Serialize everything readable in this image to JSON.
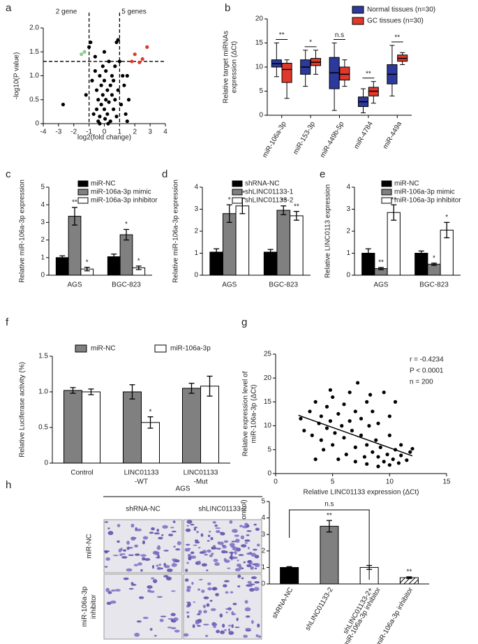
{
  "chart_data": [
    {
      "panel": "a",
      "type": "scatter",
      "annotations": [
        "2 gene",
        "5 genes"
      ],
      "xlabel": "log2(fold change)",
      "ylabel": [
        "-log10(P value)"
      ],
      "xlim": [
        -4,
        4
      ],
      "xticks": [
        -4,
        -3,
        -2,
        -1,
        0,
        1,
        2,
        3,
        4
      ],
      "ylim": [
        0,
        2
      ],
      "yticks": [
        0,
        0.5,
        {
          "value": 1,
          "label": "1.0"
        },
        1.5,
        {
          "value": 2,
          "label": "2.0"
        }
      ],
      "xthresholds": [
        -1,
        1
      ],
      "ythreshold": 1.3,
      "series": [
        {
          "color": "#000000",
          "x": [
            -2.7,
            -1.2,
            -1.0,
            -0.9,
            -0.8,
            -0.7,
            -0.6,
            -0.5,
            -0.5,
            -0.4,
            -0.4,
            -0.3,
            -0.3,
            -0.2,
            -0.2,
            -0.1,
            -0.1,
            0.0,
            0.0,
            0.05,
            0.1,
            0.1,
            0.2,
            0.2,
            0.3,
            0.3,
            0.4,
            0.4,
            0.5,
            0.5,
            0.6,
            0.6,
            0.7,
            0.7,
            0.8,
            0.8,
            0.9,
            0.9,
            1.0,
            1.1,
            1.2,
            1.3,
            1.4,
            1.5,
            1.6,
            1.5,
            -0.6,
            0.0,
            -0.3,
            0.25
          ],
          "values": [
            0.4,
            0.6,
            1.6,
            1.7,
            0.9,
            0.2,
            1.1,
            0.3,
            0.7,
            0.05,
            0.5,
            1.0,
            0.15,
            0.8,
            0.4,
            1.2,
            0.6,
            0.3,
            0.9,
            0.1,
            0.5,
            1.1,
            0.7,
            0.2,
            1.3,
            0.45,
            0.8,
            0.05,
            0.6,
            1.0,
            0.3,
            0.9,
            1.2,
            0.5,
            0.15,
            1.7,
            1.75,
            0.7,
            1.3,
            0.4,
            1.0,
            0.8,
            0.2,
            0.05,
            0.5,
            1.0,
            1.4,
            1.5,
            0.0,
            0.0
          ]
        },
        {
          "color": "#8fc98f",
          "x": [
            -1.5,
            -1.3
          ],
          "values": [
            1.45,
            1.5
          ]
        },
        {
          "color": "#e0392b",
          "x": [
            1.8,
            2.0,
            2.3,
            2.5,
            2.8
          ],
          "values": [
            1.3,
            1.45,
            1.28,
            1.35,
            1.6
          ]
        }
      ]
    },
    {
      "panel": "b",
      "type": "box",
      "ylabel": [
        "Relative target miRNAs",
        "expression (ΔCt)"
      ],
      "categories": [
        "miR-106a-3p",
        "miR-153-3p",
        "miR-449b-5p",
        "miR-4784",
        "miR-449a"
      ],
      "ylim": [
        0,
        20
      ],
      "yticks": [
        0,
        5,
        10,
        15,
        20
      ],
      "annotations": [
        "**",
        "*",
        "n.s",
        "**",
        "**"
      ],
      "series": [
        {
          "name": "Normal tissues (n=30)",
          "color": "#2b3a9c",
          "values": [
            [
              8,
              10,
              10.7,
              11.5,
              15
            ],
            [
              6,
              8.5,
              10,
              11.5,
              13.5
            ],
            [
              1,
              5.5,
              8.8,
              12,
              15
            ],
            [
              0.5,
              1.8,
              2.8,
              3.8,
              5.5
            ],
            [
              4,
              6.5,
              8.5,
              10.5,
              14.5
            ]
          ]
        },
        {
          "name": "GC tissues (n=30)",
          "color": "#e0392b",
          "values": [
            [
              3.5,
              6.8,
              9.5,
              10.8,
              11.5
            ],
            [
              8.5,
              10.3,
              11,
              11.8,
              13.5
            ],
            [
              6,
              7.3,
              8.5,
              10,
              11.5
            ],
            [
              2.5,
              4,
              5,
              5.8,
              7
            ],
            [
              10.5,
              11.2,
              11.8,
              12.5,
              13
            ]
          ]
        }
      ]
    },
    {
      "panel": "c",
      "type": "bar",
      "ylabel": [
        "Relative miR-106a-3p expression"
      ],
      "categories": [
        [
          "AGS"
        ],
        [
          "BGC-823"
        ]
      ],
      "ylim": [
        0,
        5
      ],
      "yticks": [
        0,
        1,
        2,
        3,
        4,
        5
      ],
      "series": [
        {
          "name": "miR-NC",
          "color": "#000000",
          "values": [
            1.0,
            1.05
          ],
          "errors": [
            0.1,
            0.15
          ],
          "annotations": [
            null,
            null
          ]
        },
        {
          "name": "miR-106a-3p mimic",
          "color": "#808080",
          "values": [
            3.35,
            2.3
          ],
          "errors": [
            0.5,
            0.3
          ],
          "annotations": [
            "**",
            "*"
          ]
        },
        {
          "name": "miR-106a-3p inhibitor",
          "color": "#ffffff",
          "values": [
            0.35,
            0.42
          ],
          "errors": [
            0.1,
            0.1
          ],
          "annotations": [
            "*",
            "*"
          ]
        }
      ]
    },
    {
      "panel": "d",
      "type": "bar",
      "ylabel": [
        "Relative miR-106a-3p expression"
      ],
      "categories": [
        [
          "AGS"
        ],
        [
          "BGC-823"
        ]
      ],
      "ylim": [
        0,
        4
      ],
      "yticks": [
        0,
        1,
        2,
        3,
        4
      ],
      "series": [
        {
          "name": "shRNA-NC",
          "color": "#000000",
          "values": [
            1.05,
            1.05
          ],
          "errors": [
            0.15,
            0.12
          ],
          "annotations": [
            null,
            null
          ]
        },
        {
          "name": "shLINC01133-1",
          "color": "#808080",
          "values": [
            2.8,
            2.95
          ],
          "errors": [
            0.4,
            0.2
          ],
          "annotations": [
            "*",
            "**"
          ]
        },
        {
          "name": "shLINC01133-2",
          "color": "#ffffff",
          "values": [
            3.15,
            2.7
          ],
          "errors": [
            0.35,
            0.2
          ],
          "annotations": [
            "**",
            "**"
          ]
        }
      ]
    },
    {
      "panel": "e",
      "type": "bar",
      "ylabel": [
        "Relative LINC0113 expression"
      ],
      "categories": [
        [
          "AGS"
        ],
        [
          "BGC-823"
        ]
      ],
      "ylim": [
        0,
        4
      ],
      "yticks": [
        0,
        1,
        2,
        3,
        4
      ],
      "series": [
        {
          "name": "miR-NC",
          "color": "#000000",
          "values": [
            1.0,
            1.0
          ],
          "errors": [
            0.2,
            0.1
          ],
          "annotations": [
            null,
            null
          ]
        },
        {
          "name": "miR-106a-3p mimic",
          "color": "#808080",
          "values": [
            0.3,
            0.5
          ],
          "errors": [
            0.05,
            0.05
          ],
          "annotations": [
            "**",
            "*"
          ]
        },
        {
          "name": "miR-106a-3p inhibitor",
          "color": "#ffffff",
          "values": [
            2.85,
            2.05
          ],
          "errors": [
            0.35,
            0.35
          ],
          "annotations": [
            "**",
            "*"
          ]
        }
      ]
    },
    {
      "panel": "f",
      "type": "bar",
      "ylabel": [
        "Relative Luciferase activity (%)"
      ],
      "categories": [
        [
          "Control"
        ],
        [
          "LINC01133",
          "-WT"
        ],
        [
          "LINC01133",
          "-Mut"
        ]
      ],
      "ylim": [
        0,
        1.5
      ],
      "yticks": [
        0,
        0.5,
        {
          "value": 1,
          "label": "1.0"
        },
        1.5
      ],
      "series": [
        {
          "name": "miR-NC",
          "color": "#808080",
          "values": [
            1.02,
            1.0,
            1.05
          ],
          "errors": [
            0.04,
            0.1,
            0.07
          ],
          "annotations": [
            null,
            null,
            null
          ]
        },
        {
          "name": "miR-106a-3p",
          "color": "#ffffff",
          "values": [
            1.0,
            0.57,
            1.08
          ],
          "errors": [
            0.04,
            0.08,
            0.14
          ],
          "annotations": [
            null,
            "*",
            null
          ]
        }
      ]
    },
    {
      "panel": "g",
      "type": "scatter",
      "annotations": [
        "r = -0.4234",
        "P < 0.0001",
        "n = 200"
      ],
      "xlabel": "Relative LINC01133 expression (ΔCt)",
      "ylabel": [
        "Relative expression level of",
        "miR-106a-3p (ΔCt)"
      ],
      "xlim": [
        0,
        15
      ],
      "xticks": [
        0,
        5,
        10,
        15
      ],
      "ylim": [
        0,
        25
      ],
      "yticks": [
        0,
        5,
        10,
        15,
        20,
        25
      ],
      "fit": {
        "x": [
          2,
          12
        ],
        "values": [
          12.2,
          3.7
        ]
      },
      "series": [
        {
          "color": "#000000",
          "x": [
            2.2,
            2.5,
            3,
            3.2,
            3.5,
            3.8,
            4,
            4,
            4.2,
            4.5,
            4.5,
            4.8,
            5,
            5,
            5.2,
            5.5,
            5.5,
            5.8,
            6,
            6,
            6.2,
            6.5,
            6.5,
            6.7,
            7,
            7,
            7,
            7.2,
            7.5,
            7.5,
            7.8,
            8,
            8,
            8,
            8.2,
            8.5,
            8.5,
            8.8,
            9,
            9,
            9,
            9.2,
            9.5,
            9.5,
            9.8,
            10,
            10,
            10,
            10.3,
            10.5,
            10.5,
            10.8,
            11,
            11,
            11.5,
            11.8,
            12,
            3.5,
            4.8,
            8.3
          ],
          "values": [
            11.5,
            9,
            13,
            8,
            15,
            10.5,
            7,
            12,
            5,
            14,
            9.5,
            11,
            6,
            16,
            8.5,
            12.5,
            3,
            10,
            14.5,
            7.5,
            4,
            11,
            17,
            9,
            13,
            5.5,
            2.5,
            19,
            8,
            11.5,
            3.5,
            15,
            6,
            2,
            10,
            4.5,
            13,
            7,
            1.5,
            3.5,
            10.5,
            5.5,
            17,
            2.5,
            4,
            8,
            1.8,
            12,
            3,
            5,
            15,
            2.2,
            6,
            3.8,
            2.8,
            4.5,
            5.2,
            3,
            17.5,
            16.5
          ]
        }
      ]
    },
    {
      "panel": "h",
      "type": "bar",
      "ylabel": [
        "Cell migration (% of control)"
      ],
      "categories": [
        [
          "shRNA-NC"
        ],
        [
          "shLINC01133-2"
        ],
        [
          "shLINC01133-2+",
          "miR-106a-3p inhibitor"
        ],
        [
          "miR-106a-3p inhibitor"
        ]
      ],
      "ylim": [
        0,
        5
      ],
      "yticks": [
        0,
        1,
        2,
        3,
        4,
        5
      ],
      "bracket_label": "n.s",
      "series": [
        {
          "colors": [
            "#000000",
            "#808080",
            "#ffffff",
            "#ffffff"
          ],
          "hatch": [
            false,
            false,
            false,
            true
          ],
          "values": [
            1.0,
            3.5,
            1.0,
            0.38
          ],
          "errors": [
            0.05,
            0.35,
            0.12,
            0.05
          ],
          "annotations": [
            null,
            "**",
            null,
            "**"
          ]
        }
      ]
    }
  ],
  "image_panel": {
    "title": "AGS",
    "columns": [
      "shRNA-NC",
      "shLINC01133-2"
    ],
    "rows": [
      [
        "miR-NC"
      ],
      [
        "miR-106a-3p",
        "inhibitor"
      ]
    ]
  }
}
